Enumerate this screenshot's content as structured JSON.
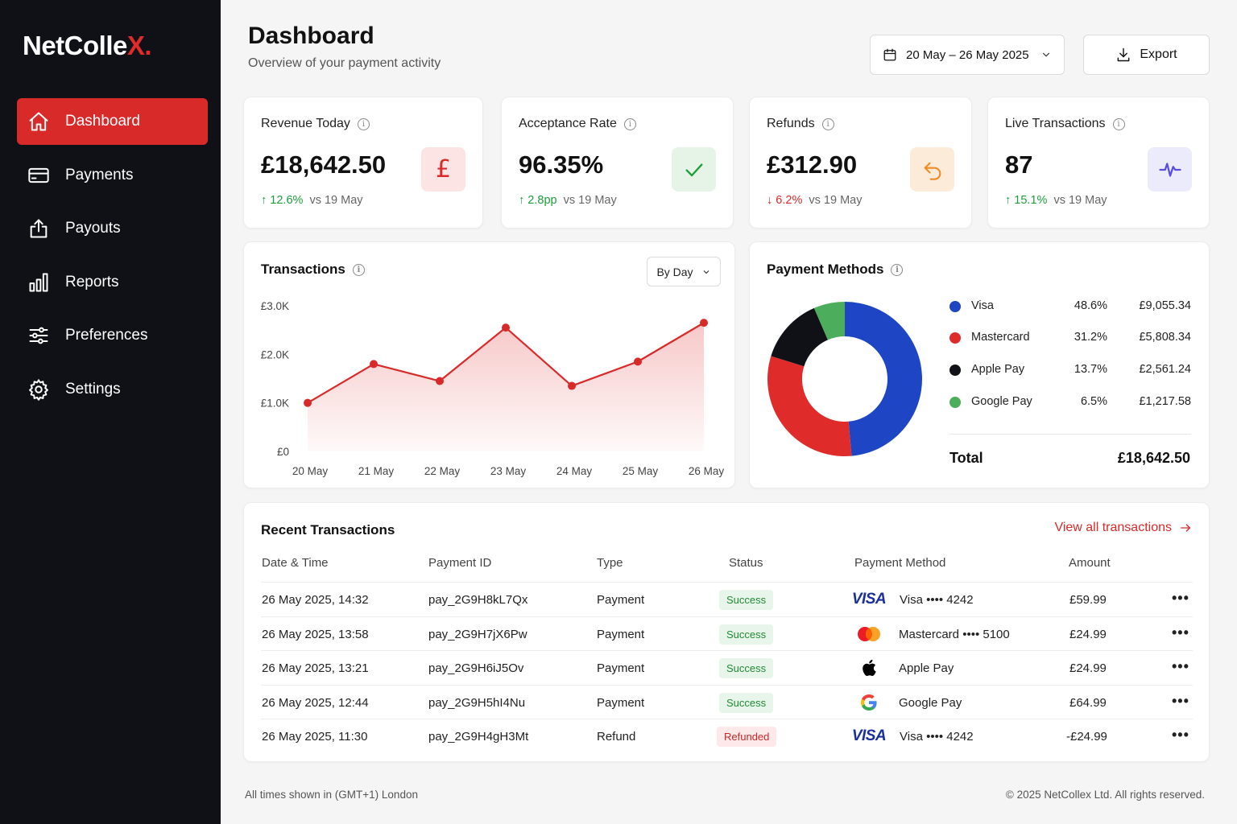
{
  "brand": {
    "name": "NetColle",
    "accent": "X.",
    "accent_color": "#e02b2b"
  },
  "sidebar": {
    "items": [
      {
        "label": "Dashboard",
        "icon": "home-icon",
        "active": true
      },
      {
        "label": "Payments",
        "icon": "card-icon"
      },
      {
        "label": "Payouts",
        "icon": "upload-icon"
      },
      {
        "label": "Reports",
        "icon": "bar-chart-icon"
      },
      {
        "label": "Preferences",
        "icon": "sliders-icon"
      },
      {
        "label": "Settings",
        "icon": "gear-icon"
      }
    ]
  },
  "header": {
    "title": "Dashboard",
    "subtitle": "Overview of your payment activity",
    "date_range": "20 May – 26 May 2025",
    "export_label": "Export"
  },
  "kpis": [
    {
      "title": "Revenue Today",
      "value": "£18,642.50",
      "delta": "12.6%",
      "direction": "up",
      "compare": "vs  19 May",
      "icon": "pound-icon",
      "badge_color": "#fde4e4"
    },
    {
      "title": "Acceptance Rate",
      "value": "96.35%",
      "delta": "2.8pp",
      "direction": "up",
      "compare": "vs  19 May",
      "icon": "check-icon",
      "badge_color": "#e6f4e8"
    },
    {
      "title": "Refunds",
      "value": "£312.90",
      "delta": "6.2%",
      "direction": "down",
      "compare": "vs  19 May",
      "icon": "undo-icon",
      "badge_color": "#fdebd9"
    },
    {
      "title": "Live Transactions",
      "value": "87",
      "delta": "15.1%",
      "direction": "up",
      "compare": "vs  19 May",
      "icon": "pulse-icon",
      "badge_color": "#ecebfc"
    }
  ],
  "transactions_chart": {
    "title": "Transactions",
    "granularity": "By Day"
  },
  "chart_data": {
    "type": "area",
    "title": "Transactions",
    "categories": [
      "20 May",
      "21 May",
      "22 May",
      "23 May",
      "24 May",
      "25 May",
      "26 May"
    ],
    "series": [
      {
        "values": [
          1000,
          1800,
          1450,
          2550,
          1350,
          1850,
          2650
        ]
      }
    ],
    "y_ticks": [
      "£0",
      "£1.0K",
      "£2.0K",
      "£3.0K"
    ],
    "ylim": [
      0,
      3000
    ],
    "color": "#d92a2a",
    "grid": false
  },
  "payment_methods": {
    "title": "Payment Methods",
    "items": [
      {
        "name": "Visa",
        "pct": "48.6%",
        "amount": "£9,055.34",
        "value": 48.6,
        "color": "#1e45c4"
      },
      {
        "name": "Mastercard",
        "pct": "31.2%",
        "amount": "£5,808.34",
        "value": 31.2,
        "color": "#e02b2b"
      },
      {
        "name": "Apple Pay",
        "pct": "13.7%",
        "amount": "£2,561.24",
        "value": 13.7,
        "color": "#0f1116"
      },
      {
        "name": "Google Pay",
        "pct": "6.5%",
        "amount": "£1,217.58",
        "value": 6.5,
        "color": "#4cae5c"
      }
    ],
    "total_label": "Total",
    "total_value": "£18,642.50"
  },
  "recent": {
    "title": "Recent Transactions",
    "view_all": "View all transactions",
    "columns": [
      "Date & Time",
      "Payment ID",
      "Type",
      "Status",
      "Payment Method",
      "Amount"
    ],
    "rows": [
      {
        "datetime": "26 May 2025, 14:32",
        "id": "pay_2G9H8kL7Qx",
        "type": "Payment",
        "status": "Success",
        "method_icon": "visa-icon",
        "method": "Visa •••• 4242",
        "amount": "£59.99"
      },
      {
        "datetime": "26 May 2025, 13:58",
        "id": "pay_2G9H7jX6Pw",
        "type": "Payment",
        "status": "Success",
        "method_icon": "mastercard-icon",
        "method": "Mastercard •••• 5100",
        "amount": "£24.99"
      },
      {
        "datetime": "26 May 2025, 13:21",
        "id": "pay_2G9H6iJ5Ov",
        "type": "Payment",
        "status": "Success",
        "method_icon": "apple-icon",
        "method": "Apple Pay",
        "amount": "£24.99"
      },
      {
        "datetime": "26 May 2025, 12:44",
        "id": "pay_2G9H5hI4Nu",
        "type": "Payment",
        "status": "Success",
        "method_icon": "google-icon",
        "method": "Google Pay",
        "amount": "£64.99"
      },
      {
        "datetime": "26 May 2025, 11:30",
        "id": "pay_2G9H4gH3Mt",
        "type": "Refund",
        "status": "Refunded",
        "method_icon": "visa-icon",
        "method": "Visa •••• 4242",
        "amount": "-£24.99"
      }
    ],
    "more_label": "•••"
  },
  "footer": {
    "timezone": "All times shown in (GMT+1) London",
    "copyright": "© 2025 NetCollex Ltd. All rights reserved."
  }
}
